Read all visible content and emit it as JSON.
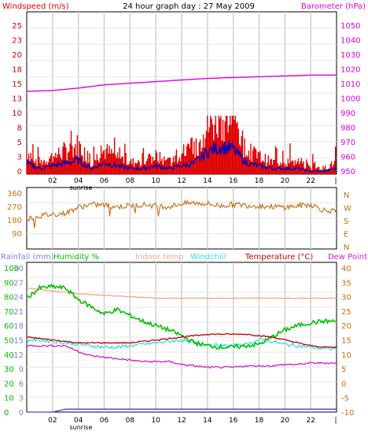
{
  "top_panel": {
    "title": "24 hour graph day : 27 May 2009",
    "left_label": "Windspeed (m/s)",
    "right_label": "Barometer (hPa)",
    "left_ticks": [
      "25",
      "23",
      "20",
      "18",
      "15",
      "13",
      "10",
      "8",
      "5",
      "3",
      "0"
    ],
    "right_ticks": [
      "1050",
      "1040",
      "1030",
      "1020",
      "1010",
      "1000",
      "990",
      "980",
      "970",
      "960",
      "950"
    ]
  },
  "mid_panel": {
    "left_ticks": [
      "360",
      "270",
      "180",
      "90"
    ],
    "right_letters": [
      "N",
      "W",
      "S",
      "E",
      "N"
    ]
  },
  "bottom_panel": {
    "labels": {
      "rainfall": "Rainfall (mm)",
      "humidity": "Humidity %",
      "indoor": "Indoor temp",
      "windchill": "Windchill",
      "temperature": "Temperature (°C)",
      "dewpoint": "Dew Point"
    },
    "rain_ticks": [
      "30",
      "27",
      "24",
      "21",
      "18",
      "15",
      "12",
      "9",
      "6",
      "3",
      "0"
    ],
    "humidity_ticks": [
      "100",
      "90",
      "80",
      "70",
      "60",
      "50",
      "40",
      "30",
      "20",
      "10",
      "0"
    ],
    "temp_ticks": [
      "40",
      "35",
      "30",
      "25",
      "20",
      "15",
      "10",
      "5",
      "0",
      "-5",
      "-10"
    ]
  },
  "x_axis": {
    "hour_labels": [
      "02",
      "04",
      "06",
      "08",
      "10",
      "12",
      "14",
      "16",
      "18",
      "20",
      "22"
    ],
    "sunrise_label": "sunrise"
  },
  "colors": {
    "wind_gust": "#e00000",
    "wind_avg": "#0000c0",
    "barometer": "#e000e0",
    "wind_dir": "#c87010",
    "humidity": "#00c000",
    "indoor": "#f0a888",
    "windchill": "#30e0e0",
    "temperature": "#c00000",
    "dewpoint": "#d020d0",
    "rain": "#4040e0"
  },
  "chart_data": [
    {
      "type": "line",
      "title": "24 hour graph day : 27 May 2009",
      "x_unit": "hour",
      "xlim": [
        0,
        24
      ],
      "series": [
        {
          "name": "Windspeed (m/s)",
          "axis": "left",
          "ylim": [
            0,
            25
          ],
          "x": [
            0,
            1,
            2,
            3,
            4,
            5,
            6,
            7,
            8,
            9,
            10,
            11,
            12,
            13,
            14,
            15,
            16,
            17,
            18,
            19,
            20,
            21,
            22,
            23,
            24
          ],
          "values": [
            2,
            1,
            1.5,
            2,
            2.5,
            1,
            2,
            1.5,
            1,
            1,
            1.5,
            1,
            1.5,
            2,
            4,
            5,
            4.5,
            2,
            1.5,
            1,
            1,
            1,
            0.5,
            0.5,
            1
          ]
        },
        {
          "name": "Barometer (hPa)",
          "axis": "right",
          "ylim": [
            950,
            1050
          ],
          "x": [
            0,
            2,
            4,
            6,
            8,
            10,
            12,
            14,
            16,
            18,
            20,
            22,
            24
          ],
          "values": [
            1001,
            1001.5,
            1003,
            1005,
            1006,
            1007,
            1008,
            1009,
            1009.5,
            1010,
            1010.5,
            1011,
            1011
          ]
        }
      ]
    },
    {
      "type": "line",
      "xlim": [
        0,
        24
      ],
      "ylim": [
        0,
        360
      ],
      "series": [
        {
          "name": "Wind direction",
          "x": [
            0,
            1,
            2,
            3,
            4,
            5,
            6,
            7,
            8,
            9,
            10,
            11,
            12,
            13,
            14,
            15,
            16,
            17,
            18,
            19,
            20,
            21,
            22,
            23,
            24
          ],
          "values": [
            180,
            200,
            210,
            220,
            260,
            280,
            275,
            265,
            270,
            280,
            270,
            265,
            285,
            290,
            285,
            270,
            280,
            275,
            270,
            265,
            260,
            270,
            280,
            240,
            230
          ]
        }
      ]
    },
    {
      "type": "line",
      "xlim": [
        0,
        24
      ],
      "series": [
        {
          "name": "Humidity %",
          "axis": "humidity",
          "ylim": [
            0,
            100
          ],
          "x": [
            0,
            1,
            2,
            3,
            4,
            5,
            6,
            7,
            8,
            9,
            10,
            11,
            12,
            13,
            14,
            15,
            16,
            17,
            18,
            19,
            20,
            21,
            22,
            23,
            24
          ],
          "values": [
            79,
            86,
            87,
            86,
            78,
            73,
            68,
            71,
            67,
            63,
            60,
            57,
            53,
            48,
            46,
            45,
            45,
            46,
            47,
            52,
            57,
            60,
            62,
            63,
            63
          ]
        },
        {
          "name": "Indoor temp",
          "axis": "temp",
          "ylim": [
            -10,
            40
          ],
          "x": [
            0,
            2,
            4,
            6,
            8,
            10,
            12,
            14,
            16,
            18,
            20,
            22,
            24
          ],
          "values": [
            33,
            32,
            31,
            30.5,
            30,
            29.5,
            29.5,
            29.5,
            29.5,
            29.5,
            29.5,
            29.5,
            29.5
          ]
        },
        {
          "name": "Windchill",
          "axis": "temp",
          "ylim": [
            -10,
            40
          ],
          "x": [
            0,
            1,
            2,
            3,
            4,
            5,
            6,
            7,
            8,
            9,
            10,
            11,
            12,
            13,
            14,
            15,
            16,
            17,
            18,
            19,
            20,
            21,
            22,
            23,
            24
          ],
          "values": [
            15,
            15,
            14.5,
            14,
            13.5,
            13,
            12.5,
            12.5,
            13,
            13.5,
            14,
            14.5,
            15,
            14,
            13.5,
            13,
            13,
            13.5,
            15,
            14.5,
            13.5,
            13,
            12.5,
            12,
            12
          ]
        },
        {
          "name": "Temperature (°C)",
          "axis": "temp",
          "ylim": [
            -10,
            40
          ],
          "x": [
            0,
            1,
            2,
            3,
            4,
            5,
            6,
            7,
            8,
            9,
            10,
            11,
            12,
            13,
            14,
            15,
            16,
            17,
            18,
            19,
            20,
            21,
            22,
            23,
            24
          ],
          "values": [
            16,
            15.5,
            15,
            14.5,
            14,
            14,
            14,
            14,
            14,
            14.5,
            15,
            15.5,
            16,
            16.5,
            17,
            17,
            17,
            17,
            16.5,
            16,
            15,
            14,
            13,
            12.5,
            12.5
          ]
        },
        {
          "name": "Dew Point",
          "axis": "temp",
          "ylim": [
            -10,
            40
          ],
          "x": [
            0,
            1,
            2,
            3,
            4,
            5,
            6,
            7,
            8,
            9,
            10,
            11,
            12,
            13,
            14,
            15,
            16,
            17,
            18,
            19,
            20,
            21,
            22,
            23,
            24
          ],
          "values": [
            13,
            13,
            13,
            13,
            11,
            9.5,
            9,
            8.5,
            8,
            7.5,
            7.5,
            7.5,
            6.5,
            6,
            5.5,
            5.5,
            5.5,
            6,
            6,
            6,
            6.5,
            6.5,
            7,
            7,
            7
          ]
        },
        {
          "name": "Rainfall (mm)",
          "axis": "rain",
          "ylim": [
            0,
            30
          ],
          "x": [
            0,
            2,
            2.5,
            3,
            24
          ],
          "values": [
            0,
            0,
            0.3,
            0.6,
            0.6
          ]
        }
      ]
    }
  ]
}
